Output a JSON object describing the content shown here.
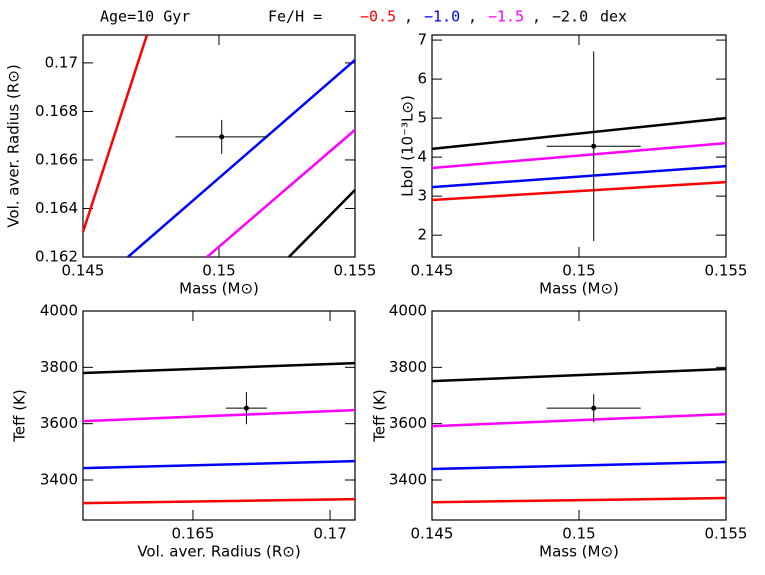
{
  "header": {
    "age": "Age=10 Gyr",
    "feh": "Fe/H =",
    "separator": ",",
    "unit": "dex"
  },
  "chart_data": [
    {
      "type": "line",
      "xlabel": "Mass (M⊙)",
      "ylabel": "Vol. aver. Radius (R⊙)",
      "xlim": [
        0.145,
        0.155
      ],
      "xticks": [
        0.145,
        0.15,
        0.155
      ],
      "ylim": [
        0.162,
        0.17115
      ],
      "yticks": [
        0.162,
        0.164,
        0.166,
        0.168,
        0.17
      ],
      "series": [
        {
          "name": "−0.5",
          "color": "#ff0000",
          "x": [
            0.145,
            0.14735
          ],
          "values": [
            0.16303,
            0.17115
          ]
        },
        {
          "name": "−1.0",
          "color": "#0000ff",
          "x": [
            0.14665,
            0.155
          ],
          "values": [
            0.162,
            0.17012
          ]
        },
        {
          "name": "−1.5",
          "color": "#ff00ff",
          "x": [
            0.14956,
            0.155
          ],
          "values": [
            0.162,
            0.16724
          ]
        },
        {
          "name": "−2.0",
          "color": "#000000",
          "x": [
            0.15257,
            0.155
          ],
          "values": [
            0.162,
            0.16476
          ]
        }
      ],
      "measurement": {
        "x": 0.1501,
        "y": 0.16695,
        "xerr": 0.0017,
        "yerr": 0.0007
      }
    },
    {
      "type": "line",
      "xlabel": "Mass (M⊙)",
      "ylabel": "Lbol (10⁻³L⊙)",
      "xlim": [
        0.145,
        0.155
      ],
      "xticks": [
        0.145,
        0.15,
        0.155
      ],
      "ylim": [
        1.44,
        7.13
      ],
      "yticks": [
        2,
        3,
        4,
        5,
        6,
        7
      ],
      "series": [
        {
          "color": "#ff0000",
          "x": [
            0.145,
            0.155
          ],
          "values": [
            2.9,
            3.36
          ]
        },
        {
          "color": "#0000ff",
          "x": [
            0.145,
            0.155
          ],
          "values": [
            3.23,
            3.77
          ]
        },
        {
          "color": "#ff00ff",
          "x": [
            0.145,
            0.155
          ],
          "values": [
            3.72,
            4.36
          ]
        },
        {
          "color": "#000000",
          "x": [
            0.145,
            0.155
          ],
          "values": [
            4.21,
            5.0
          ]
        }
      ],
      "measurement": {
        "x": 0.1505,
        "y": 4.28,
        "xerr": 0.0016,
        "yerr": 2.43
      }
    },
    {
      "type": "line",
      "xlabel": "Vol. aver. Radius (R⊙)",
      "ylabel": "Teff (K)",
      "xlim": [
        0.16099,
        0.17091
      ],
      "xticks": [
        0.165,
        0.17
      ],
      "ylim": [
        3258,
        4000
      ],
      "yticks": [
        3400,
        3600,
        3800,
        4000
      ],
      "series": [
        {
          "color": "#ff0000",
          "x": [
            0.16099,
            0.17091
          ],
          "values": [
            3318,
            3332
          ]
        },
        {
          "color": "#0000ff",
          "x": [
            0.16099,
            0.17091
          ],
          "values": [
            3442,
            3467
          ]
        },
        {
          "color": "#ff00ff",
          "x": [
            0.16099,
            0.17091
          ],
          "values": [
            3609,
            3648
          ]
        },
        {
          "color": "#000000",
          "x": [
            0.16099,
            0.17091
          ],
          "values": [
            3780,
            3815
          ]
        }
      ],
      "measurement": {
        "x": 0.16695,
        "y": 3655,
        "xerr": 0.00075,
        "yerr": 57
      }
    },
    {
      "type": "line",
      "xlabel": "Mass (M⊙)",
      "ylabel": "Teff (K)",
      "xlim": [
        0.145,
        0.155
      ],
      "xticks": [
        0.145,
        0.15,
        0.155
      ],
      "ylim": [
        3258,
        4000
      ],
      "yticks": [
        3400,
        3600,
        3800,
        4000
      ],
      "series": [
        {
          "color": "#ff0000",
          "x": [
            0.145,
            0.155
          ],
          "values": [
            3321,
            3336
          ]
        },
        {
          "color": "#0000ff",
          "x": [
            0.145,
            0.155
          ],
          "values": [
            3439,
            3464
          ]
        },
        {
          "color": "#ff00ff",
          "x": [
            0.145,
            0.155
          ],
          "values": [
            3591,
            3634
          ]
        },
        {
          "color": "#000000",
          "x": [
            0.145,
            0.155
          ],
          "values": [
            3751,
            3794
          ]
        }
      ],
      "measurement": {
        "x": 0.1505,
        "y": 3655,
        "xerr": 0.0016,
        "yerr": 50
      }
    }
  ]
}
